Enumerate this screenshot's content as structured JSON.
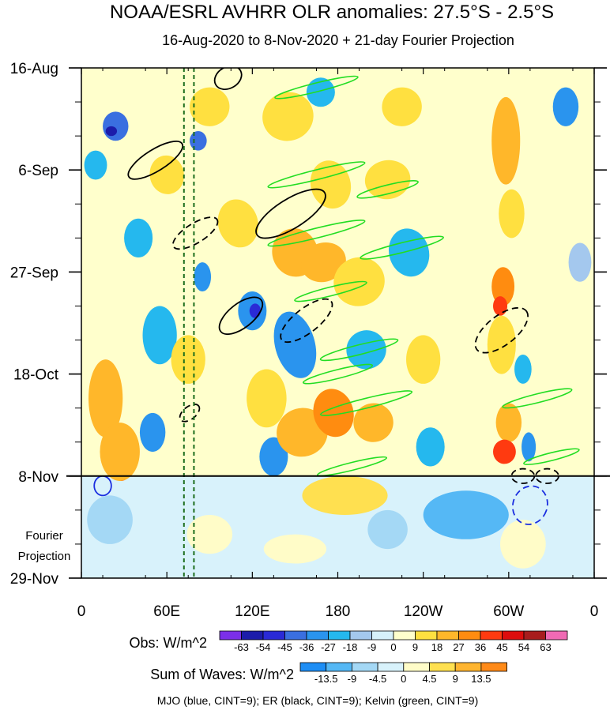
{
  "chart_data": {
    "type": "heatmap",
    "title": "NOAA/ESRL AVHRR OLR anomalies: 27.5°S - 2.5°S",
    "subtitle": "16-Aug-2020 to 8-Nov-2020 + 21-day Fourier Projection",
    "x_tick_labels": [
      "0",
      "60E",
      "120E",
      "180",
      "120W",
      "60W",
      "0"
    ],
    "y_tick_labels": [
      "16-Aug",
      "6-Sep",
      "27-Sep",
      "18-Oct",
      "8-Nov",
      "29-Nov"
    ],
    "xlim": [
      0,
      360
    ],
    "ylim_days": [
      0,
      105
    ],
    "obs_end_day": 84,
    "projection_label": "Fourier Projection",
    "reference_lines_deg": [
      72,
      79
    ],
    "obs_legend": {
      "title": "Obs: W/m^2",
      "levels": [
        "-63",
        "-54",
        "-45",
        "-36",
        "-27",
        "-18",
        "-9",
        "0",
        "9",
        "18",
        "27",
        "36",
        "45",
        "54",
        "63"
      ],
      "colors": [
        "#7b2fe8",
        "#1c1caa",
        "#2a2ad6",
        "#3a6fe0",
        "#2a94ee",
        "#25b8ee",
        "#a4c8ee",
        "#d6f0fa",
        "#ffffcc",
        "#ffe040",
        "#ffb72a",
        "#ff8c10",
        "#ff3a10",
        "#dd0d0d",
        "#a81d1d",
        "#f06ab4"
      ]
    },
    "waves_legend": {
      "title": "Sum of Waves: W/m^2",
      "levels": [
        "-13.5",
        "-9",
        "-4.5",
        "0",
        "4.5",
        "9",
        "13.5"
      ],
      "colors": [
        "#1e8ef5",
        "#55b8f5",
        "#a4d8f5",
        "#d8f2fb",
        "#fffcc8",
        "#ffe050",
        "#ffb530",
        "#ff8a18"
      ]
    },
    "footnote": "MJO (blue, CINT=9); ER (black, CINT=9); Kelvin (green, CINT=9)",
    "anomaly_blobs": [
      {
        "lon": 14,
        "day": 67,
        "dlon": 7,
        "dday": 4,
        "level": 45,
        "rot": 0
      },
      {
        "lon": 17,
        "day": 68,
        "dlon": 12,
        "dday": 8,
        "level": 27,
        "rot": 0
      },
      {
        "lon": 28,
        "day": 83,
        "dlon": 6,
        "dday": 2,
        "level": 45,
        "rot": 0
      },
      {
        "lon": 27,
        "day": 79,
        "dlon": 14,
        "dday": 6,
        "level": 27,
        "rot": 0
      },
      {
        "lon": 24,
        "day": 12,
        "dlon": 9,
        "dday": 3,
        "level": -36,
        "rot": 0
      },
      {
        "lon": 21,
        "day": 13,
        "dlon": 4,
        "dday": 1,
        "level": -54,
        "rot": 0
      },
      {
        "lon": 10,
        "day": 20,
        "dlon": 8,
        "dday": 3,
        "level": -18,
        "rot": 0
      },
      {
        "lon": 40,
        "day": 35,
        "dlon": 10,
        "dday": 4,
        "level": -18,
        "rot": 0
      },
      {
        "lon": 55,
        "day": 55,
        "dlon": 12,
        "dday": 6,
        "level": -18,
        "rot": 0
      },
      {
        "lon": 50,
        "day": 75,
        "dlon": 9,
        "dday": 4,
        "level": -27,
        "rot": 0
      },
      {
        "lon": 60,
        "day": 22,
        "dlon": 12,
        "dday": 4,
        "level": 18,
        "rot": -10
      },
      {
        "lon": 90,
        "day": 8,
        "dlon": 14,
        "dday": 4,
        "level": 18,
        "rot": -10
      },
      {
        "lon": 82,
        "day": 15,
        "dlon": 6,
        "dday": 2,
        "level": -36,
        "rot": 0
      },
      {
        "lon": 85,
        "day": 43,
        "dlon": 6,
        "dday": 3,
        "level": -27,
        "rot": 0
      },
      {
        "lon": 75,
        "day": 60,
        "dlon": 12,
        "dday": 5,
        "level": 18,
        "rot": 0
      },
      {
        "lon": 110,
        "day": 32,
        "dlon": 14,
        "dday": 5,
        "level": 18,
        "rot": -15
      },
      {
        "lon": 120,
        "day": 50,
        "dlon": 10,
        "dday": 4,
        "level": -27,
        "rot": 0
      },
      {
        "lon": 122,
        "day": 50,
        "dlon": 4,
        "dday": 1.5,
        "level": -45,
        "rot": 0
      },
      {
        "lon": 130,
        "day": 68,
        "dlon": 14,
        "dday": 6,
        "level": 18,
        "rot": 0
      },
      {
        "lon": 135,
        "day": 80,
        "dlon": 10,
        "dday": 4,
        "level": -27,
        "rot": 0
      },
      {
        "lon": 145,
        "day": 10,
        "dlon": 18,
        "dday": 5,
        "level": 18,
        "rot": -20
      },
      {
        "lon": 150,
        "day": 38,
        "dlon": 16,
        "dday": 5,
        "level": 27,
        "rot": -20
      },
      {
        "lon": 150,
        "day": 57,
        "dlon": 14,
        "dday": 7,
        "level": -27,
        "rot": -15
      },
      {
        "lon": 155,
        "day": 75,
        "dlon": 18,
        "dday": 5,
        "level": 27,
        "rot": -15
      },
      {
        "lon": 168,
        "day": 5,
        "dlon": 10,
        "dday": 3,
        "level": -18,
        "rot": 0
      },
      {
        "lon": 175,
        "day": 24,
        "dlon": 14,
        "dday": 5,
        "level": 18,
        "rot": -15
      },
      {
        "lon": 170,
        "day": 40,
        "dlon": 16,
        "dday": 4,
        "level": 27,
        "rot": -20
      },
      {
        "lon": 177,
        "day": 71,
        "dlon": 14,
        "dday": 5,
        "level": 36,
        "rot": -15
      },
      {
        "lon": 185,
        "day": 88,
        "dlon": 30,
        "dday": 4,
        "level": 9,
        "rot": 0
      },
      {
        "lon": 195,
        "day": 44,
        "dlon": 18,
        "dday": 5,
        "level": 18,
        "rot": -20
      },
      {
        "lon": 200,
        "day": 58,
        "dlon": 14,
        "dday": 4,
        "level": -18,
        "rot": -15
      },
      {
        "lon": 205,
        "day": 73,
        "dlon": 14,
        "dday": 4,
        "level": 27,
        "rot": -15
      },
      {
        "lon": 215,
        "day": 23,
        "dlon": 16,
        "dday": 4,
        "level": 18,
        "rot": -10
      },
      {
        "lon": 225,
        "day": 8,
        "dlon": 14,
        "dday": 4,
        "level": 18,
        "rot": -10
      },
      {
        "lon": 230,
        "day": 38,
        "dlon": 14,
        "dday": 5,
        "level": -18,
        "rot": -15
      },
      {
        "lon": 240,
        "day": 60,
        "dlon": 12,
        "dday": 5,
        "level": 18,
        "rot": 0
      },
      {
        "lon": 245,
        "day": 78,
        "dlon": 10,
        "dday": 4,
        "level": -18,
        "rot": 0
      },
      {
        "lon": 260,
        "day": 20,
        "dlon": 12,
        "dday": 6,
        "level": 9,
        "rot": 0
      },
      {
        "lon": 270,
        "day": 92,
        "dlon": 30,
        "dday": 5,
        "level": -9,
        "rot": 0
      },
      {
        "lon": 298,
        "day": 15,
        "dlon": 10,
        "dday": 9,
        "level": 27,
        "rot": 0
      },
      {
        "lon": 302,
        "day": 30,
        "dlon": 9,
        "dday": 5,
        "level": 18,
        "rot": 0
      },
      {
        "lon": 296,
        "day": 45,
        "dlon": 8,
        "dday": 4,
        "level": 36,
        "rot": 0
      },
      {
        "lon": 294,
        "day": 49,
        "dlon": 5,
        "dday": 2,
        "level": 45,
        "rot": 0
      },
      {
        "lon": 295,
        "day": 57,
        "dlon": 10,
        "dday": 6,
        "level": 18,
        "rot": 0
      },
      {
        "lon": 300,
        "day": 73,
        "dlon": 9,
        "dday": 4,
        "level": 27,
        "rot": 0
      },
      {
        "lon": 297,
        "day": 79,
        "dlon": 8,
        "dday": 2.5,
        "level": 45,
        "rot": 0
      },
      {
        "lon": 314,
        "day": 78,
        "dlon": 5,
        "dday": 3,
        "level": -27,
        "rot": 0
      },
      {
        "lon": 310,
        "day": 62,
        "dlon": 6,
        "dday": 3,
        "level": -18,
        "rot": 0
      },
      {
        "lon": 340,
        "day": 8,
        "dlon": 9,
        "dday": 4,
        "level": -27,
        "rot": 0
      },
      {
        "lon": 350,
        "day": 40,
        "dlon": 8,
        "dday": 4,
        "level": -9,
        "rot": 0
      },
      {
        "lon": 345,
        "day": 70,
        "dlon": 10,
        "dday": 5,
        "level": 9,
        "rot": 0
      },
      {
        "lon": 20,
        "day": 93,
        "dlon": 16,
        "dday": 5,
        "level": -4.5,
        "rot": 0
      },
      {
        "lon": 90,
        "day": 96,
        "dlon": 16,
        "dday": 4,
        "level": 4.5,
        "rot": 0
      },
      {
        "lon": 150,
        "day": 99,
        "dlon": 22,
        "dday": 3,
        "level": 4.5,
        "rot": 0
      },
      {
        "lon": 215,
        "day": 95,
        "dlon": 14,
        "dday": 4,
        "level": -4.5,
        "rot": 0
      },
      {
        "lon": 310,
        "day": 98,
        "dlon": 16,
        "dday": 5,
        "level": 4.5,
        "rot": 0
      }
    ],
    "wave_contours": [
      {
        "wave": "Kelvin",
        "lon": 165,
        "day": 4,
        "dlon": 30,
        "dday": 0.9,
        "rot": -14,
        "dash": false
      },
      {
        "wave": "Kelvin",
        "lon": 165,
        "day": 22,
        "dlon": 35,
        "dday": 1.0,
        "rot": -14,
        "dash": false
      },
      {
        "wave": "Kelvin",
        "lon": 215,
        "day": 25,
        "dlon": 22,
        "dday": 0.9,
        "rot": -14,
        "dash": false
      },
      {
        "wave": "Kelvin",
        "lon": 165,
        "day": 34,
        "dlon": 35,
        "dday": 1.0,
        "rot": -14,
        "dash": false
      },
      {
        "wave": "Kelvin",
        "lon": 225,
        "day": 37,
        "dlon": 30,
        "dday": 1.0,
        "rot": -14,
        "dash": false
      },
      {
        "wave": "Kelvin",
        "lon": 175,
        "day": 46,
        "dlon": 26,
        "dday": 0.9,
        "rot": -14,
        "dash": false
      },
      {
        "wave": "Kelvin",
        "lon": 195,
        "day": 58,
        "dlon": 28,
        "dday": 1.0,
        "rot": -14,
        "dash": false
      },
      {
        "wave": "Kelvin",
        "lon": 180,
        "day": 63,
        "dlon": 25,
        "dday": 0.9,
        "rot": -14,
        "dash": false
      },
      {
        "wave": "Kelvin",
        "lon": 200,
        "day": 69,
        "dlon": 33,
        "dday": 1.0,
        "rot": -14,
        "dash": false
      },
      {
        "wave": "Kelvin",
        "lon": 190,
        "day": 82,
        "dlon": 25,
        "dday": 0.8,
        "rot": -14,
        "dash": false
      },
      {
        "wave": "Kelvin",
        "lon": 320,
        "day": 68,
        "dlon": 25,
        "dday": 0.9,
        "rot": -14,
        "dash": false
      },
      {
        "wave": "Kelvin",
        "lon": 330,
        "day": 80,
        "dlon": 20,
        "dday": 0.8,
        "rot": -14,
        "dash": false
      },
      {
        "wave": "ER",
        "lon": 52,
        "day": 19,
        "dlon": 22,
        "dday": 2.2,
        "rot": -32,
        "dash": false
      },
      {
        "wave": "ER",
        "lon": 103,
        "day": 2,
        "dlon": 10,
        "dday": 2.2,
        "rot": -30,
        "dash": false
      },
      {
        "wave": "ER",
        "lon": 147,
        "day": 30,
        "dlon": 28,
        "dday": 3.0,
        "rot": -32,
        "dash": false
      },
      {
        "wave": "ER",
        "lon": 112,
        "day": 51,
        "dlon": 18,
        "dday": 2.5,
        "rot": -38,
        "dash": false
      },
      {
        "wave": "ER",
        "lon": 80,
        "day": 34,
        "dlon": 18,
        "dday": 2.0,
        "rot": -32,
        "dash": true
      },
      {
        "wave": "ER",
        "lon": 158,
        "day": 52,
        "dlon": 22,
        "dday": 2.5,
        "rot": -38,
        "dash": true
      },
      {
        "wave": "ER",
        "lon": 76,
        "day": 71,
        "dlon": 8,
        "dday": 1.3,
        "rot": -38,
        "dash": true
      },
      {
        "wave": "ER",
        "lon": 295,
        "day": 54,
        "dlon": 22,
        "dday": 3.0,
        "rot": -38,
        "dash": true
      },
      {
        "wave": "ER",
        "lon": 310,
        "day": 84,
        "dlon": 8,
        "dday": 1.5,
        "rot": 0,
        "dash": true
      },
      {
        "wave": "ER",
        "lon": 327,
        "day": 84,
        "dlon": 8,
        "dday": 1.5,
        "rot": 0,
        "dash": true
      },
      {
        "wave": "MJO",
        "lon": 15,
        "day": 86,
        "dlon": 6,
        "dday": 2.0,
        "rot": 0,
        "dash": false
      },
      {
        "wave": "MJO",
        "lon": 315,
        "day": 90,
        "dlon": 12,
        "dday": 4.0,
        "rot": 20,
        "dash": true
      }
    ]
  }
}
